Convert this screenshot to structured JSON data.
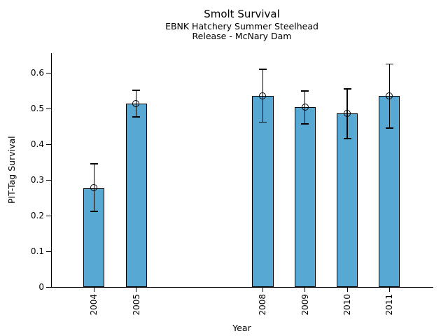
{
  "chart_data": {
    "type": "bar",
    "title": "Smolt Survival",
    "subtitle1": "EBNK Hatchery Summer Steelhead",
    "subtitle2": "Release - McNary Dam",
    "xlabel": "Year",
    "ylabel": "PIT-Tag Survival",
    "categories": [
      2004,
      2005,
      2008,
      2009,
      2010,
      2011
    ],
    "values": [
      0.278,
      0.515,
      0.537,
      0.505,
      0.488,
      0.537
    ],
    "error_low": [
      0.212,
      0.478,
      0.463,
      0.458,
      0.417,
      0.447
    ],
    "error_high": [
      0.346,
      0.553,
      0.612,
      0.551,
      0.557,
      0.627
    ],
    "yticks": [
      0,
      0.1,
      0.2,
      0.3,
      0.4,
      0.5,
      0.6
    ],
    "ytick_labels": [
      "0",
      "0.1",
      "0.2",
      "0.3",
      "0.4",
      "0.5",
      "0.6"
    ],
    "ylim": [
      0,
      0.657
    ],
    "xlim": [
      2003.0,
      2012.04
    ],
    "bar_width_years": 0.5,
    "bar_color": "#57a9d4",
    "edge_color": "#000000",
    "error_color": "#000000",
    "grid": false,
    "legend": null,
    "marker": "open-circle",
    "x_tick_rotation_deg": 90
  }
}
